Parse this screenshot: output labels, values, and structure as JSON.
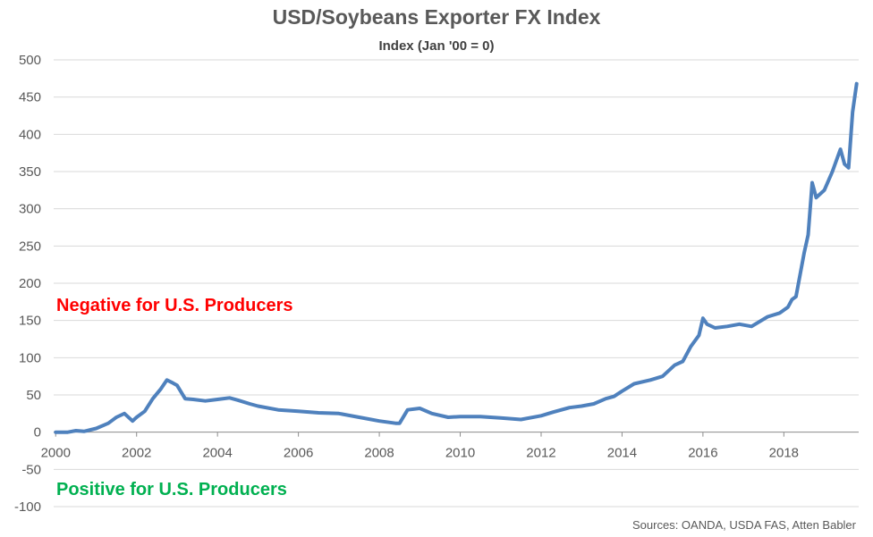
{
  "chart_data": {
    "type": "line",
    "title": "USD/Soybeans Exporter FX Index",
    "subtitle": "Index (Jan '00 = 0)",
    "xlabel": "",
    "ylabel": "",
    "xlim": [
      2000,
      2019.8
    ],
    "ylim": [
      -100,
      500
    ],
    "yticks": [
      -100,
      -50,
      0,
      50,
      100,
      150,
      200,
      250,
      300,
      350,
      400,
      450,
      500
    ],
    "xticks": [
      2000,
      2002,
      2004,
      2006,
      2008,
      2010,
      2012,
      2014,
      2016,
      2018
    ],
    "grid": "horizontal",
    "line_color": "#4F81BD",
    "annotations": [
      {
        "text": "Negative for U.S. Producers",
        "color": "#FF0000"
      },
      {
        "text": "Positive for U.S. Producers",
        "color": "#00B050"
      }
    ],
    "source": "Sources: OANDA, USDA FAS, Atten Babler",
    "series": [
      {
        "x": [
          2000.0,
          2000.3,
          2000.5,
          2000.7,
          2001.0,
          2001.3,
          2001.5,
          2001.7,
          2001.9,
          2002.0,
          2002.2,
          2002.4,
          2002.6,
          2002.75,
          2002.9,
          2003.0,
          2003.2,
          2003.4,
          2003.7,
          2004.0,
          2004.3,
          2004.5,
          2004.8,
          2005.0,
          2005.5,
          2006.0,
          2006.5,
          2007.0,
          2007.5,
          2008.0,
          2008.4,
          2008.5,
          2008.7,
          2009.0,
          2009.3,
          2009.7,
          2010.0,
          2010.5,
          2011.0,
          2011.5,
          2012.0,
          2012.3,
          2012.7,
          2013.0,
          2013.3,
          2013.6,
          2013.8,
          2014.0,
          2014.3,
          2014.7,
          2015.0,
          2015.3,
          2015.5,
          2015.7,
          2015.9,
          2016.0,
          2016.1,
          2016.3,
          2016.6,
          2016.9,
          2017.2,
          2017.6,
          2017.9,
          2018.1,
          2018.2,
          2018.3,
          2018.5,
          2018.6,
          2018.7,
          2018.8,
          2018.9,
          2019.0,
          2019.2,
          2019.4,
          2019.5,
          2019.6,
          2019.7,
          2019.8
        ],
        "values": [
          0,
          0,
          2,
          1,
          5,
          12,
          20,
          25,
          15,
          20,
          28,
          45,
          58,
          70,
          66,
          63,
          45,
          44,
          42,
          44,
          46,
          43,
          38,
          35,
          30,
          28,
          26,
          25,
          20,
          15,
          12,
          12,
          30,
          32,
          25,
          20,
          21,
          21,
          19,
          17,
          22,
          27,
          33,
          35,
          38,
          45,
          48,
          55,
          65,
          70,
          75,
          90,
          95,
          115,
          130,
          153,
          145,
          140,
          142,
          145,
          142,
          155,
          160,
          168,
          178,
          182,
          240,
          265,
          335,
          315,
          320,
          325,
          350,
          380,
          360,
          355,
          430,
          468
        ]
      }
    ]
  }
}
